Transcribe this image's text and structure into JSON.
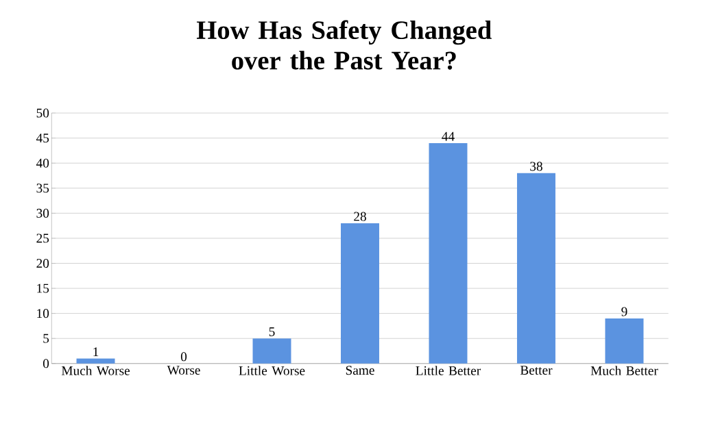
{
  "chart_data": {
    "type": "bar",
    "title": "How Has Safety Changed over the Past Year?",
    "categories": [
      "Much Worse",
      "Worse",
      "Little Worse",
      "Same",
      "Little Better",
      "Better",
      "Much Better"
    ],
    "values": [
      1,
      0,
      5,
      28,
      44,
      38,
      9
    ],
    "color": "#5b93e0",
    "ylim": [
      0,
      50
    ],
    "yticks": [
      0,
      5,
      10,
      15,
      20,
      25,
      30,
      35,
      40,
      45,
      50
    ],
    "grid": "y",
    "data_labels": true
  }
}
